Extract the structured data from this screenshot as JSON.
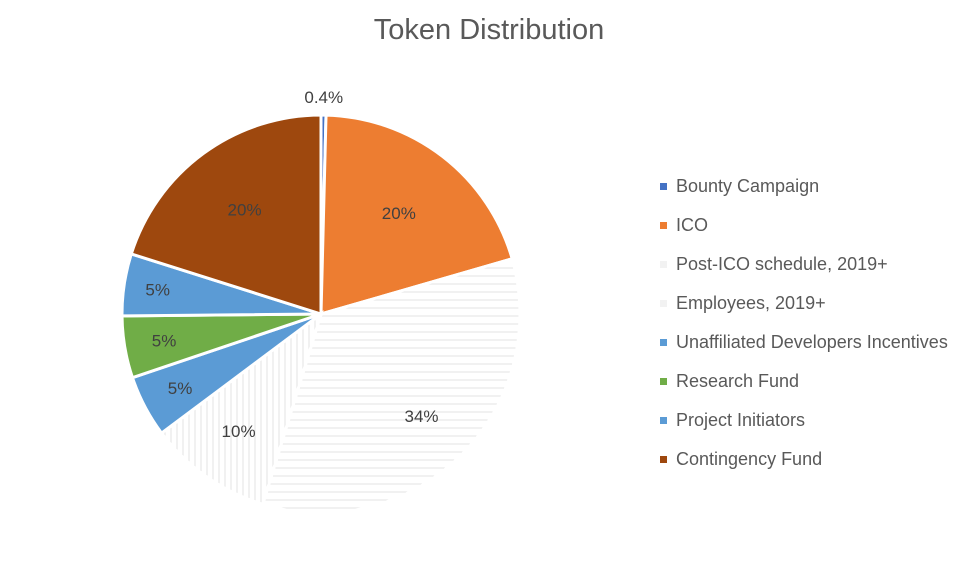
{
  "chart_data": {
    "type": "pie",
    "title": "Token Distribution",
    "slices": [
      {
        "name": "Bounty Campaign",
        "value": 0.4,
        "label": "0.4%",
        "color": "#4472c4",
        "pattern": "solid"
      },
      {
        "name": "ICO",
        "value": 20,
        "label": "20%",
        "color": "#ed7d31",
        "pattern": "solid"
      },
      {
        "name": "Post-ICO schedule, 2019+",
        "value": 34,
        "label": "34%",
        "color": "#d9d9d9",
        "pattern": "horizontal-lines"
      },
      {
        "name": "Employees, 2019+",
        "value": 10,
        "label": "10%",
        "color": "#d9d9d9",
        "pattern": "vertical-lines"
      },
      {
        "name": "Project Initiators",
        "value": 5,
        "label": "5%",
        "color": "#5b9bd5",
        "pattern": "solid"
      },
      {
        "name": "Research Fund",
        "value": 5,
        "label": "5%",
        "color": "#70ad47",
        "pattern": "solid"
      },
      {
        "name": "Unaffiliated Developers Incentives",
        "value": 5,
        "label": "5%",
        "color": "#5b9bd5",
        "pattern": "solid"
      },
      {
        "name": "Contingency Fund",
        "value": 20,
        "label": "20%",
        "color": "#9e480e",
        "pattern": "solid"
      }
    ],
    "legend": {
      "position": "right",
      "entries": [
        {
          "label": "Bounty Campaign",
          "color": "#4472c4"
        },
        {
          "label": "ICO",
          "color": "#ed7d31"
        },
        {
          "label": "Post-ICO schedule, 2019+",
          "color": "#f2f2f2"
        },
        {
          "label": "Employees, 2019+",
          "color": "#f2f2f2"
        },
        {
          "label": "Unaffiliated Developers Incentives",
          "color": "#5b9bd5"
        },
        {
          "label": "Research Fund",
          "color": "#70ad47"
        },
        {
          "label": "Project Initiators",
          "color": "#5b9bd5"
        },
        {
          "label": "Contingency Fund",
          "color": "#9e480e"
        }
      ]
    }
  }
}
